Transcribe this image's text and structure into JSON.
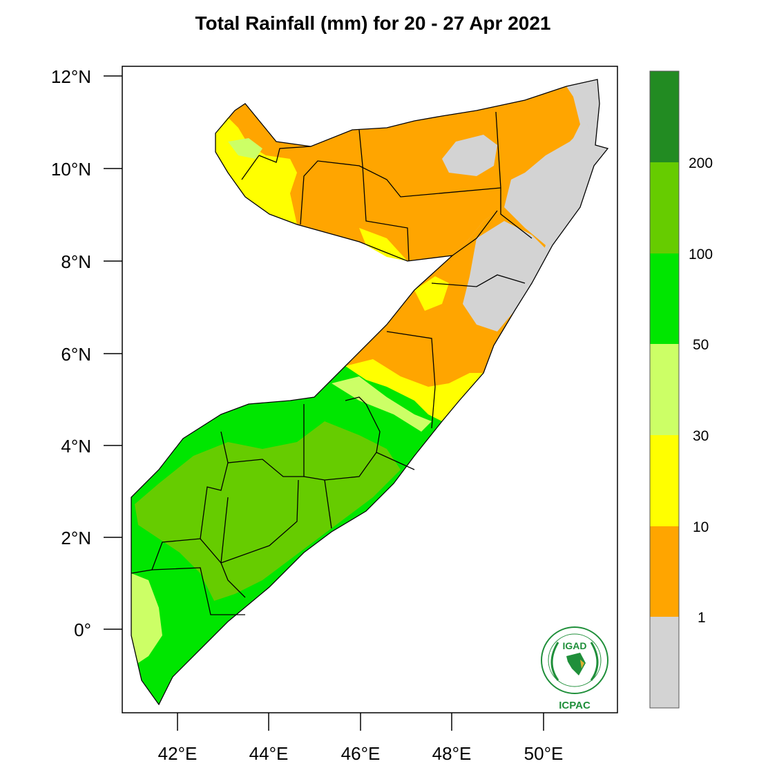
{
  "title": "Total Rainfall (mm) for 20 - 27 Apr 2021",
  "map": {
    "lat_ticks": [
      "12°N",
      "10°N",
      "8°N",
      "6°N",
      "4°N",
      "2°N",
      "0°"
    ],
    "lon_ticks": [
      "42°E",
      "44°E",
      "46°E",
      "48°E",
      "50°E"
    ]
  },
  "colorbar": {
    "labels": [
      "200",
      "100",
      "50",
      "30",
      "10",
      "1"
    ],
    "colors": [
      "#228b22",
      "#66cc00",
      "#00e600",
      "#ccff66",
      "#ffff00",
      "#ffa500",
      "#d3d3d3"
    ]
  },
  "logo": {
    "top_text": "IGAD",
    "bottom_text": "ICPAC"
  }
}
